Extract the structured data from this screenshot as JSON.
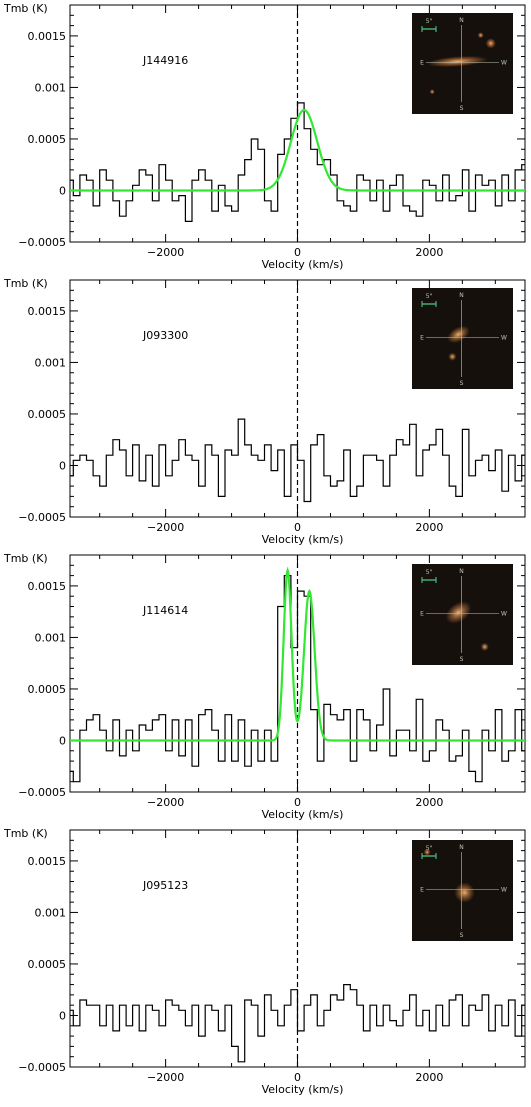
{
  "colors": {
    "axis": "#000000",
    "spectrum": "#000000",
    "fit": "#33e833",
    "thumb_bg": "#16100c",
    "compass": "#b9c8b0",
    "scalebar": "#4fd08a"
  },
  "chart_data": [
    {
      "type": "line",
      "title": "J144916",
      "xlabel": "Velocity (km/s)",
      "ylabel": "Tmb (K)",
      "xlim": [
        -3450,
        3450
      ],
      "ylim": [
        -0.0005,
        0.0018
      ],
      "xticks": [
        -2000,
        0,
        2000
      ],
      "xtick_labels": [
        "−2000",
        "0",
        "2000"
      ],
      "yticks": [
        -0.0005,
        0,
        0.0005,
        0.001,
        0.0015
      ],
      "ytick_labels": [
        "−0.0005",
        "0",
        "0.0005",
        "0.001",
        "0.0015"
      ],
      "series": [
        {
          "style": "histogram",
          "x": [
            -3450,
            -3350,
            -3250,
            -3150,
            -3050,
            -2950,
            -2850,
            -2750,
            -2650,
            -2550,
            -2450,
            -2350,
            -2250,
            -2150,
            -2050,
            -1950,
            -1850,
            -1750,
            -1650,
            -1550,
            -1450,
            -1350,
            -1250,
            -1150,
            -1050,
            -950,
            -850,
            -750,
            -650,
            -550,
            -450,
            -350,
            -250,
            -150,
            -50,
            50,
            150,
            250,
            350,
            450,
            550,
            650,
            750,
            850,
            950,
            1050,
            1150,
            1250,
            1350,
            1450,
            1550,
            1650,
            1750,
            1850,
            1950,
            2050,
            2150,
            2250,
            2350,
            2450,
            2550,
            2650,
            2750,
            2850,
            2950,
            3050,
            3150,
            3250,
            3350,
            3450
          ],
          "values": [
            0.0001,
            -5e-05,
            0.00015,
            0.0001,
            -0.00015,
            0.0002,
            0.0001,
            -0.0001,
            -0.00025,
            -0.0001,
            5e-05,
            0.0002,
            0.00015,
            -0.0001,
            0.00025,
            0.0001,
            -0.0001,
            -5e-05,
            -0.0003,
            0.0001,
            0.0002,
            0.0001,
            -0.0002,
            5e-05,
            -0.00015,
            -0.0002,
            0.00015,
            0.0003,
            0.0005,
            0.0004,
            -0.0001,
            -0.0002,
            0.00035,
            0.0005,
            0.0007,
            0.00085,
            0.0006,
            0.0004,
            0.00025,
            0.0003,
            0.00015,
            -0.0001,
            -0.00015,
            -0.0002,
            0.00015,
            0.0001,
            -0.0001,
            0.0001,
            -0.0002,
            5e-05,
            0.00015,
            -0.00015,
            -0.0002,
            -0.00025,
            0.0001,
            5e-05,
            -0.0001,
            0.00015,
            -0.0001,
            -5e-05,
            0.0002,
            -0.0002,
            0.00015,
            5e-05,
            0.0001,
            -0.00015,
            0.00015,
            -0.0001,
            0.0002,
            0.00025
          ]
        },
        {
          "style": "gaussian-fit",
          "components": [
            {
              "center": 100,
              "amplitude": 0.00078,
              "sigma": 200
            }
          ]
        }
      ]
    },
    {
      "type": "line",
      "title": "J093300",
      "xlabel": "Velocity (km/s)",
      "ylabel": "Tmb (K)",
      "xlim": [
        -3450,
        3450
      ],
      "ylim": [
        -0.0005,
        0.0018
      ],
      "xticks": [
        -2000,
        0,
        2000
      ],
      "xtick_labels": [
        "−2000",
        "0",
        "2000"
      ],
      "yticks": [
        -0.0005,
        0,
        0.0005,
        0.001,
        0.0015
      ],
      "ytick_labels": [
        "−0.0005",
        "0",
        "0.0005",
        "0.001",
        "0.0015"
      ],
      "series": [
        {
          "style": "histogram",
          "x": [
            -3450,
            -3350,
            -3250,
            -3150,
            -3050,
            -2950,
            -2850,
            -2750,
            -2650,
            -2550,
            -2450,
            -2350,
            -2250,
            -2150,
            -2050,
            -1950,
            -1850,
            -1750,
            -1650,
            -1550,
            -1450,
            -1350,
            -1250,
            -1150,
            -1050,
            -950,
            -850,
            -750,
            -650,
            -550,
            -450,
            -350,
            -250,
            -150,
            -50,
            50,
            150,
            250,
            350,
            450,
            550,
            650,
            750,
            850,
            950,
            1050,
            1150,
            1250,
            1350,
            1450,
            1550,
            1650,
            1750,
            1850,
            1950,
            2050,
            2150,
            2250,
            2350,
            2450,
            2550,
            2650,
            2750,
            2850,
            2950,
            3050,
            3150,
            3250,
            3350,
            3450
          ],
          "values": [
            -0.0001,
            5e-05,
            0.0001,
            5e-05,
            -0.0001,
            -0.0002,
            0.0001,
            0.00025,
            0.00015,
            -0.0001,
            0.0002,
            -0.00015,
            0.0001,
            -0.0002,
            0.0002,
            -0.0001,
            5e-05,
            0.00025,
            0.0001,
            5e-05,
            -0.0002,
            0.0002,
            0.0001,
            -0.0003,
            0.00015,
            0.0001,
            0.00045,
            0.0002,
            0.0001,
            5e-05,
            0.0002,
            -5e-05,
            0.00015,
            -0.0003,
            0.0002,
            5e-05,
            -0.00035,
            0.0002,
            0.0003,
            -0.0001,
            -0.0002,
            -0.00015,
            0.00015,
            -0.0003,
            -0.0002,
            0.0001,
            0.0001,
            5e-05,
            -0.0002,
            0.0001,
            0.00025,
            0.0002,
            0.0004,
            -0.0001,
            0.00015,
            0.0002,
            0.00035,
            0.0001,
            -0.0002,
            -0.0003,
            0.00035,
            -0.0001,
            5e-05,
            0.0001,
            -5e-05,
            0.00015,
            -0.00025,
            0.0001,
            -0.00015,
            0.0001
          ]
        }
      ]
    },
    {
      "type": "line",
      "title": "J114614",
      "xlabel": "Velocity (km/s)",
      "ylabel": "Tmb (K)",
      "xlim": [
        -3450,
        3450
      ],
      "ylim": [
        -0.0005,
        0.0018
      ],
      "xticks": [
        -2000,
        0,
        2000
      ],
      "xtick_labels": [
        "−2000",
        "0",
        "2000"
      ],
      "yticks": [
        -0.0005,
        0,
        0.0005,
        0.001,
        0.0015
      ],
      "ytick_labels": [
        "−0.0005",
        "0",
        "0.0005",
        "0.001",
        "0.0015"
      ],
      "series": [
        {
          "style": "histogram",
          "x": [
            -3450,
            -3350,
            -3250,
            -3150,
            -3050,
            -2950,
            -2850,
            -2750,
            -2650,
            -2550,
            -2450,
            -2350,
            -2250,
            -2150,
            -2050,
            -1950,
            -1850,
            -1750,
            -1650,
            -1550,
            -1450,
            -1350,
            -1250,
            -1150,
            -1050,
            -950,
            -850,
            -750,
            -650,
            -550,
            -450,
            -350,
            -250,
            -150,
            -50,
            50,
            150,
            250,
            350,
            450,
            550,
            650,
            750,
            850,
            950,
            1050,
            1150,
            1250,
            1350,
            1450,
            1550,
            1650,
            1750,
            1850,
            1950,
            2050,
            2150,
            2250,
            2350,
            2450,
            2550,
            2650,
            2750,
            2850,
            2950,
            3050,
            3150,
            3250,
            3350,
            3450
          ],
          "values": [
            -0.0003,
            -0.0004,
            0.0001,
            0.0002,
            0.00025,
            0.0001,
            -0.0001,
            0.0002,
            -0.00015,
            0.0001,
            -0.0001,
            0.00015,
            0.0001,
            0.0002,
            0.00025,
            -0.0001,
            0.0002,
            -0.00015,
            0.0002,
            -0.00025,
            0.00025,
            0.0003,
            0.0001,
            -0.0002,
            0.00025,
            -0.0002,
            0.0002,
            -0.00025,
            0.0001,
            -0.0002,
            0.0001,
            -0.0002,
            0.0013,
            0.0016,
            0.0009,
            0.00145,
            0.0014,
            0.0003,
            -0.0002,
            0.00035,
            0.00025,
            0.0002,
            0.0003,
            -0.0002,
            0.0003,
            0.0002,
            -0.0001,
            0.00015,
            0.0005,
            -0.00015,
            0.0001,
            0.0001,
            -0.0001,
            0.0004,
            -0.0002,
            -0.0001,
            0.0002,
            0.0001,
            -0.0002,
            -0.00015,
            0.0001,
            -0.0003,
            -0.0004,
            0.0001,
            -0.0001,
            0.0003,
            -0.0002,
            -0.0001,
            0.0003,
            -0.0001
          ]
        },
        {
          "style": "gaussian-fit",
          "components": [
            {
              "center": -150,
              "amplitude": 0.00165,
              "sigma": 60
            },
            {
              "center": 180,
              "amplitude": 0.00145,
              "sigma": 80
            }
          ]
        }
      ]
    },
    {
      "type": "line",
      "title": "J095123",
      "xlabel": "Velocity (km/s)",
      "ylabel": "Tmb (K)",
      "xlim": [
        -3450,
        3450
      ],
      "ylim": [
        -0.0005,
        0.0018
      ],
      "xticks": [
        -2000,
        0,
        2000
      ],
      "xtick_labels": [
        "−2000",
        "0",
        "2000"
      ],
      "yticks": [
        -0.0005,
        0,
        0.0005,
        0.001,
        0.0015
      ],
      "ytick_labels": [
        "−0.0005",
        "0",
        "0.0005",
        "0.001",
        "0.0015"
      ],
      "series": [
        {
          "style": "histogram",
          "x": [
            -3450,
            -3350,
            -3250,
            -3150,
            -3050,
            -2950,
            -2850,
            -2750,
            -2650,
            -2550,
            -2450,
            -2350,
            -2250,
            -2150,
            -2050,
            -1950,
            -1850,
            -1750,
            -1650,
            -1550,
            -1450,
            -1350,
            -1250,
            -1150,
            -1050,
            -950,
            -850,
            -750,
            -650,
            -550,
            -450,
            -350,
            -250,
            -150,
            -50,
            50,
            150,
            250,
            350,
            450,
            550,
            650,
            750,
            850,
            950,
            1050,
            1150,
            1250,
            1350,
            1450,
            1550,
            1650,
            1750,
            1850,
            1950,
            2050,
            2150,
            2250,
            2350,
            2450,
            2550,
            2650,
            2750,
            2850,
            2950,
            3050,
            3150,
            3250,
            3350,
            3450
          ],
          "values": [
            5e-05,
            -0.0001,
            0.00015,
            0.0001,
            0.0001,
            -0.0001,
            0.0001,
            -0.00015,
            0.0001,
            -0.0001,
            0.0001,
            -0.00015,
            0.0001,
            5e-05,
            -0.0001,
            0.00015,
            0.0001,
            5e-05,
            -0.0001,
            0.0001,
            -0.0002,
            0.0001,
            5e-05,
            -0.00015,
            0.0001,
            -0.0003,
            -0.00045,
            0.00015,
            0.0001,
            -0.0002,
            0.0002,
            5e-05,
            -0.0001,
            0.0001,
            0.00025,
            -0.00015,
            0.0001,
            0.0002,
            -0.0001,
            5e-05,
            0.0002,
            0.00015,
            0.0003,
            0.00025,
            0.0001,
            -0.00015,
            0.0001,
            -0.0001,
            0.0001,
            -5e-05,
            -0.0001,
            5e-05,
            0.0002,
            -0.0001,
            5e-05,
            -0.00015,
            0.0001,
            -0.0001,
            0.00015,
            0.0002,
            -0.0001,
            0.0001,
            5e-05,
            0.0002,
            -0.00015,
            0.0001,
            -0.0001,
            0.00015,
            -0.0002,
            0.0001
          ]
        }
      ]
    }
  ],
  "thumbnails": [
    {
      "n": "N",
      "s": "S",
      "e": "E",
      "w": "W",
      "scale": "5\""
    },
    {
      "n": "N",
      "s": "S",
      "e": "E",
      "w": "W",
      "scale": "5\""
    },
    {
      "n": "N",
      "s": "S",
      "e": "E",
      "w": "W",
      "scale": "5\""
    },
    {
      "n": "N",
      "s": "S",
      "e": "E",
      "w": "W",
      "scale": "5\""
    }
  ]
}
